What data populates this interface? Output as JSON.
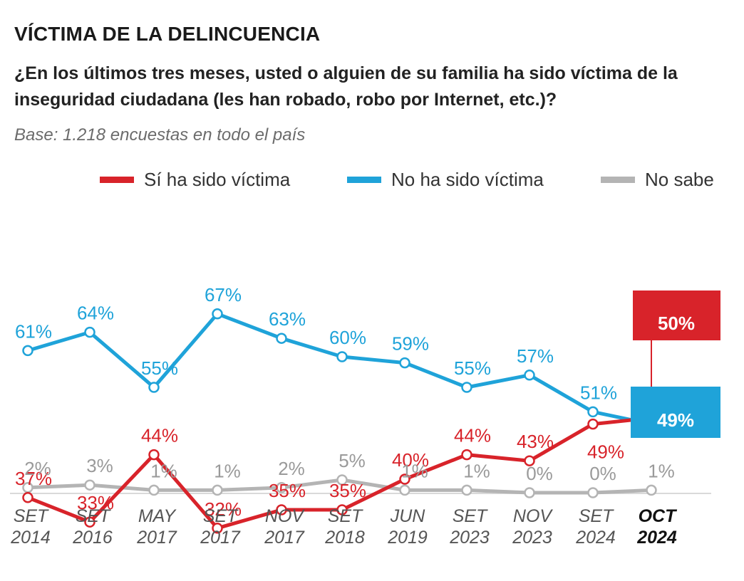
{
  "title": "VÍCTIMA DE LA DELINCUENCIA",
  "subtitle": "¿En los últimos tres meses, usted o alguien de su familia ha sido víctima de la inseguridad ciudadana (les han robado, robo por Internet, etc.)?",
  "base": "Base: 1.218 encuestas en todo el país",
  "colors": {
    "red": "#d8232a",
    "blue": "#1fa3d9",
    "gray": "#b4b4b4"
  },
  "chart_data": {
    "type": "line",
    "categories": [
      [
        "SET",
        "2014"
      ],
      [
        "SET",
        "2016"
      ],
      [
        "MAY",
        "2017"
      ],
      [
        "SET",
        "2017"
      ],
      [
        "NOV",
        "2017"
      ],
      [
        "SET",
        "2018"
      ],
      [
        "JUN",
        "2019"
      ],
      [
        "SET",
        "2023"
      ],
      [
        "NOV",
        "2023"
      ],
      [
        "SET",
        "2024"
      ],
      [
        "OCT",
        "2024"
      ]
    ],
    "series": [
      {
        "name": "Sí ha sido víctima",
        "color": "#d8232a",
        "values": [
          37,
          33,
          44,
          32,
          35,
          35,
          40,
          44,
          43,
          49,
          50
        ]
      },
      {
        "name": "No ha sido víctima",
        "color": "#1fa3d9",
        "values": [
          61,
          64,
          55,
          67,
          63,
          60,
          59,
          55,
          57,
          51,
          49
        ]
      },
      {
        "name": "No sabe",
        "color": "#b4b4b4",
        "values": [
          2,
          3,
          1,
          1,
          2,
          5,
          1,
          1,
          0,
          0,
          1
        ]
      }
    ],
    "value_suffix": "%",
    "highlight_last": true,
    "legend_position": "top",
    "grid": false
  }
}
